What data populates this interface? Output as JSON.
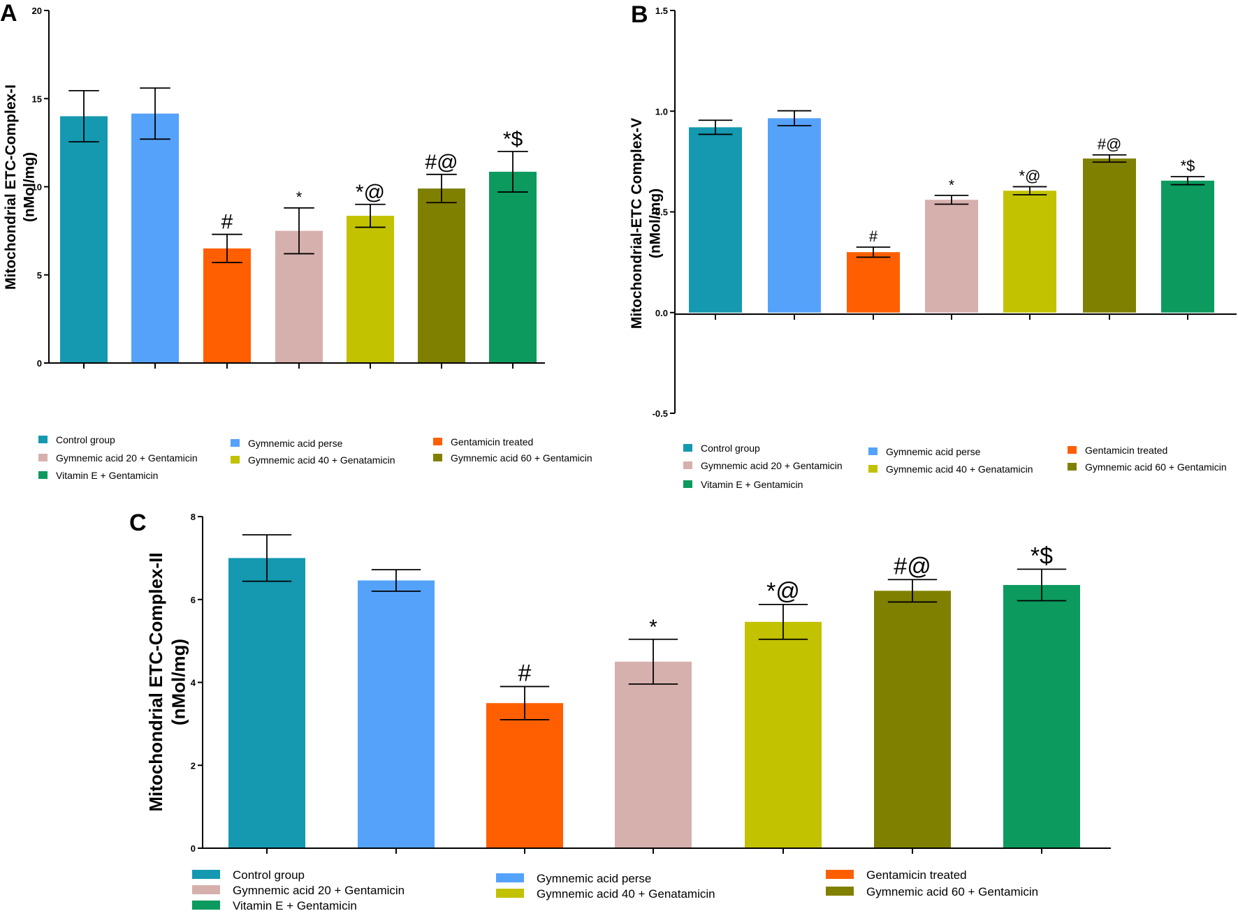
{
  "legend_entries": [
    {
      "label": "Control group",
      "color": "#1499b1"
    },
    {
      "label": "Gymnemic acid perse",
      "color": "#55a2fb"
    },
    {
      "label": "Gentamicin treated",
      "color": "#ff5f00"
    },
    {
      "label": "Gymnemic acid 20 + Gentamicin",
      "color": "#d6b0ad"
    },
    {
      "label": "Gymnemic acid 40 + Genatamicin",
      "color": "#c2c200"
    },
    {
      "label": "Gymnemic acid 60 + Gentamicin",
      "color": "#808000"
    },
    {
      "label": "Vitamin E + Gentamicin",
      "color": "#0c9a5e"
    }
  ],
  "chart_data": [
    {
      "panel": "A",
      "type": "bar",
      "title": "",
      "ylabel": "Mitochondrial ETC-Complex-I\n(nMol/mg)",
      "xlabel": "",
      "ylim": [
        0,
        20
      ],
      "yticks": [
        0,
        5,
        10,
        15,
        20
      ],
      "ytick_labels": [
        "0",
        "5",
        "10",
        "15",
        "20"
      ],
      "categories": [
        "Control group",
        "Gymnemic acid perse",
        "Gentamicin treated",
        "Gymnemic acid 20 + Gentamicin",
        "Gymnemic acid 40 + Genatamicin",
        "Gymnemic acid 60 + Gentamicin",
        "Vitamin E + Gentamicin"
      ],
      "values": [
        14.0,
        14.15,
        6.5,
        7.5,
        8.35,
        9.9,
        10.85
      ],
      "errors": [
        1.45,
        1.45,
        0.8,
        1.3,
        0.65,
        0.8,
        1.15
      ],
      "significance": [
        "",
        "",
        "#",
        "*",
        "*@",
        "#@",
        "*$"
      ]
    },
    {
      "panel": "B",
      "type": "bar",
      "title": "",
      "ylabel": "Mitochondrial-ETC Complex-V\n(nMol/mg)",
      "xlabel": "",
      "ylim": [
        -0.5,
        1.5
      ],
      "yticks": [
        -0.5,
        0.0,
        0.5,
        1.0,
        1.5
      ],
      "ytick_labels": [
        "-0.5",
        "0.0",
        "0.5",
        "1.0",
        "1.5"
      ],
      "categories": [
        "Control group",
        "Gymnemic acid perse",
        "Gentamicin treated",
        "Gymnemic acid 20 + Gentamicin",
        "Gymnemic acid 40 + Genatamicin",
        "Gymnemic acid 60 + Gentamicin",
        "Vitamin E + Gentamicin"
      ],
      "values": [
        0.92,
        0.965,
        0.3,
        0.56,
        0.605,
        0.765,
        0.655
      ],
      "errors": [
        0.035,
        0.037,
        0.025,
        0.022,
        0.02,
        0.018,
        0.02
      ],
      "significance": [
        "",
        "",
        "#",
        "*",
        "*@",
        "#@",
        "*$"
      ]
    },
    {
      "panel": "C",
      "type": "bar",
      "title": "",
      "ylabel": "Mitochondrial  ETC-Complex-II\n(nMol/mg)",
      "xlabel": "",
      "ylim": [
        0,
        8
      ],
      "yticks": [
        0,
        2,
        4,
        6,
        8
      ],
      "ytick_labels": [
        "0",
        "2",
        "4",
        "6",
        "8"
      ],
      "categories": [
        "Control group",
        "Gymnemic acid perse",
        "Gentamicin treated",
        "Gymnemic acid 20 + Gentamicin",
        "Gymnemic acid 40 + Genatamicin",
        "Gymnemic acid 60 + Gentamicin",
        "Vitamin E + Gentamicin"
      ],
      "values": [
        7.0,
        6.46,
        3.5,
        4.5,
        5.46,
        6.21,
        6.35
      ],
      "errors": [
        0.56,
        0.26,
        0.4,
        0.54,
        0.42,
        0.27,
        0.38
      ],
      "significance": [
        "",
        "",
        "#",
        "*",
        "*@",
        "#@",
        "*$"
      ]
    }
  ]
}
